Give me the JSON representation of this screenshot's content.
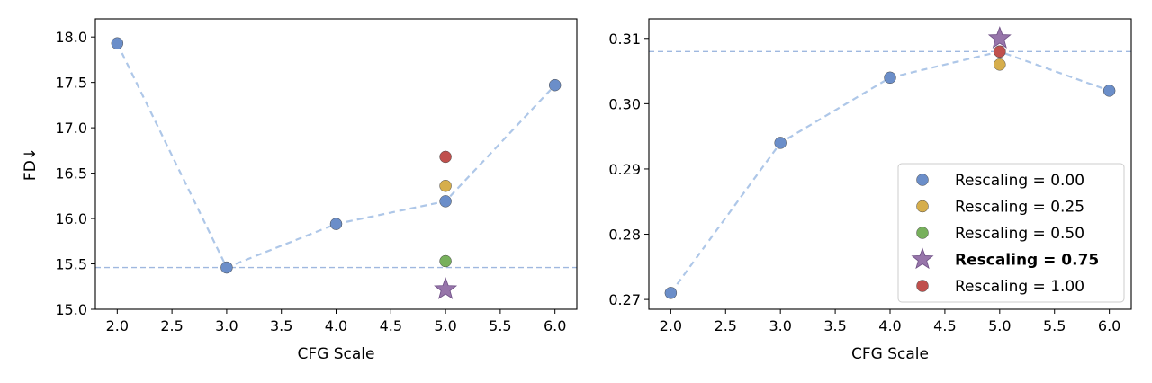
{
  "chart_data": [
    {
      "type": "scatter",
      "xlabel": "CFG Scale",
      "ylabel": "FD↓",
      "xlim": [
        1.8,
        6.2
      ],
      "ylim": [
        15.0,
        18.2
      ],
      "xticks": [
        2.0,
        2.5,
        3.0,
        3.5,
        4.0,
        4.5,
        5.0,
        5.5,
        6.0
      ],
      "yticks": [
        15.0,
        15.5,
        16.0,
        16.5,
        17.0,
        17.5,
        18.0
      ],
      "xtick_labels": [
        "2.0",
        "2.5",
        "3.0",
        "3.5",
        "4.0",
        "4.5",
        "5.0",
        "5.5",
        "6.0"
      ],
      "ytick_labels": [
        "15.0",
        "15.5",
        "16.0",
        "16.5",
        "17.0",
        "17.5",
        "18.0"
      ],
      "line_series": {
        "x": [
          2.0,
          3.0,
          4.0,
          5.0,
          6.0
        ],
        "y": [
          17.93,
          15.46,
          15.94,
          16.19,
          17.47
        ],
        "style": "dashed",
        "color": "#aec7e8"
      },
      "hline": 15.46,
      "series": [
        {
          "name": "Rescaling = 0.00",
          "marker": "circle",
          "color": "#6b8ec9",
          "x": [
            2.0,
            3.0,
            4.0,
            5.0,
            6.0
          ],
          "y": [
            17.93,
            15.46,
            15.94,
            16.19,
            17.47
          ]
        },
        {
          "name": "Rescaling = 0.25",
          "marker": "circle",
          "color": "#d6ae4c",
          "x": [
            5.0
          ],
          "y": [
            16.36
          ]
        },
        {
          "name": "Rescaling = 0.50",
          "marker": "circle",
          "color": "#77b05c",
          "x": [
            5.0
          ],
          "y": [
            15.53
          ]
        },
        {
          "name": "Rescaling = 0.75",
          "marker": "star",
          "color": "#9775aa",
          "x": [
            5.0
          ],
          "y": [
            15.22
          ]
        },
        {
          "name": "Rescaling = 1.00",
          "marker": "circle",
          "color": "#c0504d",
          "x": [
            5.0
          ],
          "y": [
            16.68
          ]
        }
      ]
    },
    {
      "type": "scatter",
      "xlabel": "CFG Scale",
      "ylabel": "",
      "xlim": [
        1.8,
        6.2
      ],
      "ylim": [
        0.2685,
        0.313
      ],
      "xticks": [
        2.0,
        2.5,
        3.0,
        3.5,
        4.0,
        4.5,
        5.0,
        5.5,
        6.0
      ],
      "yticks": [
        0.27,
        0.28,
        0.29,
        0.3,
        0.31
      ],
      "xtick_labels": [
        "2.0",
        "2.5",
        "3.0",
        "3.5",
        "4.0",
        "4.5",
        "5.0",
        "5.5",
        "6.0"
      ],
      "ytick_labels": [
        "0.27",
        "0.28",
        "0.29",
        "0.30",
        "0.31"
      ],
      "line_series": {
        "x": [
          2.0,
          3.0,
          4.0,
          5.0,
          6.0
        ],
        "y": [
          0.271,
          0.294,
          0.304,
          0.308,
          0.302
        ],
        "style": "dashed",
        "color": "#aec7e8"
      },
      "hline": 0.308,
      "series": [
        {
          "name": "Rescaling = 0.00",
          "marker": "circle",
          "color": "#6b8ec9",
          "x": [
            2.0,
            3.0,
            4.0,
            5.0,
            6.0
          ],
          "y": [
            0.271,
            0.294,
            0.304,
            0.308,
            0.302
          ]
        },
        {
          "name": "Rescaling = 0.25",
          "marker": "circle",
          "color": "#d6ae4c",
          "x": [
            5.0
          ],
          "y": [
            0.306
          ]
        },
        {
          "name": "Rescaling = 0.50",
          "marker": "circle",
          "color": "#77b05c",
          "x": [],
          "y": []
        },
        {
          "name": "Rescaling = 0.75",
          "marker": "star",
          "color": "#9775aa",
          "x": [
            5.0
          ],
          "y": [
            0.31
          ]
        },
        {
          "name": "Rescaling = 1.00",
          "marker": "circle",
          "color": "#c0504d",
          "x": [
            5.0
          ],
          "y": [
            0.308
          ]
        }
      ],
      "legend": {
        "placement": "lower-right",
        "entries": [
          {
            "label": "Rescaling = 0.00",
            "marker": "circle",
            "color": "#6b8ec9",
            "bold": false
          },
          {
            "label": "Rescaling = 0.25",
            "marker": "circle",
            "color": "#d6ae4c",
            "bold": false
          },
          {
            "label": "Rescaling = 0.50",
            "marker": "circle",
            "color": "#77b05c",
            "bold": false
          },
          {
            "label": "Rescaling = 0.75",
            "marker": "star",
            "color": "#9775aa",
            "bold": true
          },
          {
            "label": "Rescaling = 1.00",
            "marker": "circle",
            "color": "#c0504d",
            "bold": false
          }
        ]
      }
    }
  ]
}
